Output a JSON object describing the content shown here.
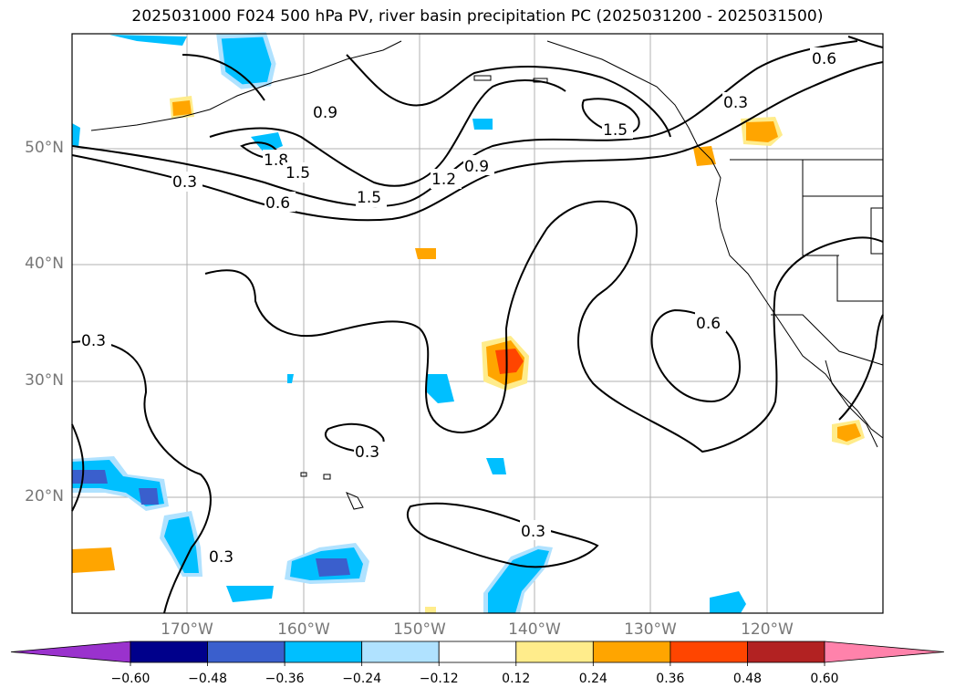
{
  "title": "2025031000 F024 500 hPa PV, river basin precipitation PC (2025031200 - 2025031500)",
  "lat_labels": [
    "50°N",
    "40°N",
    "30°N",
    "20°N"
  ],
  "lon_labels": [
    "170°W",
    "160°W",
    "150°W",
    "140°W",
    "130°W",
    "120°W"
  ],
  "colorbar": {
    "ticks": [
      "−0.60",
      "−0.48",
      "−0.36",
      "−0.24",
      "−0.12",
      "0.12",
      "0.24",
      "0.36",
      "0.48",
      "0.60"
    ],
    "colors": [
      "#9a32cd",
      "#00008b",
      "#3a5fcd",
      "#00bfff",
      "#b0e2ff",
      "#ffffff",
      "#ffec8b",
      "#ffa500",
      "#ff4500",
      "#b22222",
      "#ff82ab"
    ]
  },
  "contour_labels": [
    "0.3",
    "0.6",
    "0.9",
    "1.2",
    "1.5",
    "1.8"
  ],
  "legend_colors": {
    "positive_light": "#ffec8b",
    "positive_mid": "#ffa500",
    "positive_strong": "#ff4500",
    "negative_light": "#b0e2ff",
    "negative_mid": "#00bfff",
    "negative_strong": "#3a5fcd"
  }
}
